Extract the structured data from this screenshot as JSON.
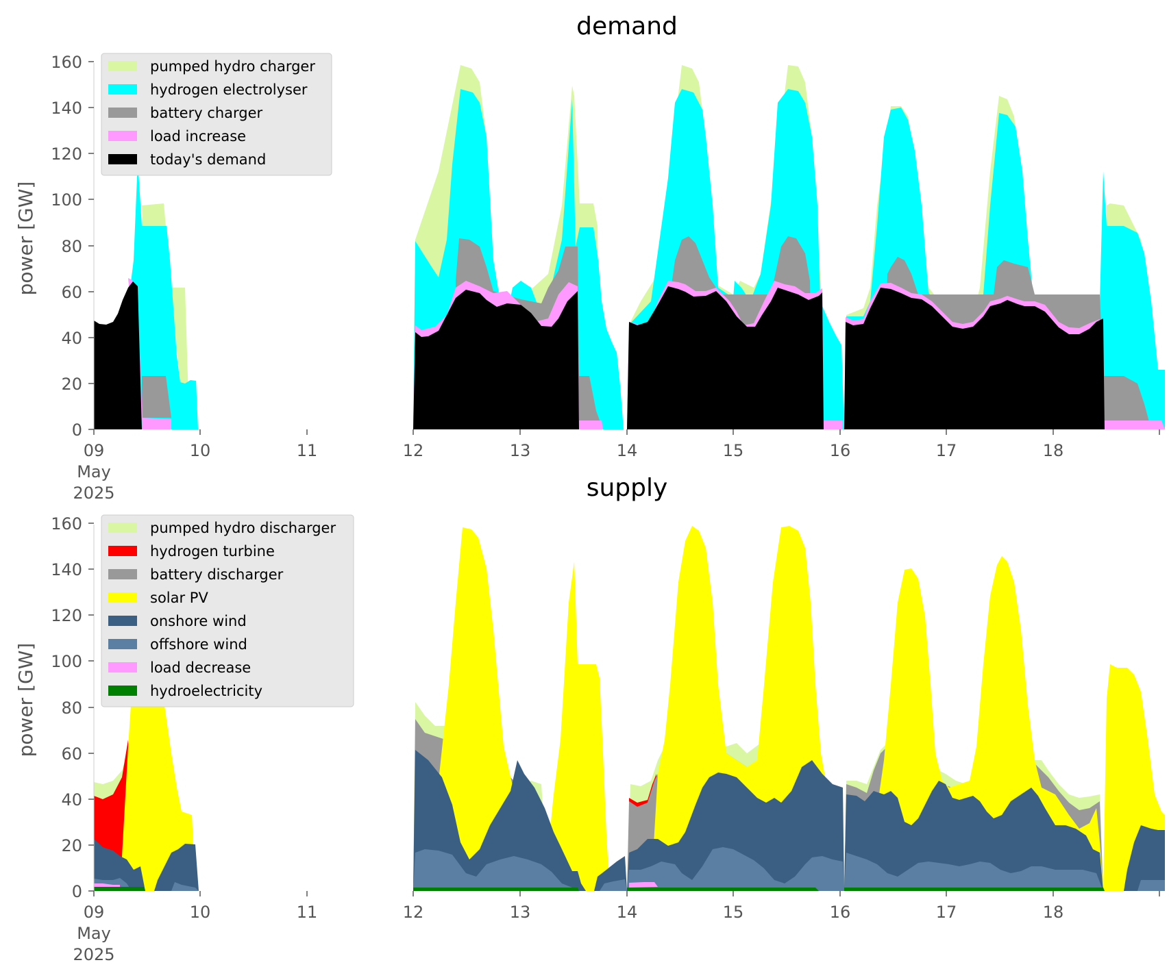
{
  "chart_data": [
    {
      "type": "area",
      "title": "demand",
      "ylabel": "power [GW]",
      "xlabel": "",
      "ylim": [
        0,
        162
      ],
      "yticks": [
        0,
        20,
        40,
        60,
        80,
        100,
        120,
        140,
        160
      ],
      "xlim": [
        "2025-05-09",
        "2025-05-19"
      ],
      "xticks": [
        "09",
        "10",
        "11",
        "12",
        "13",
        "14",
        "15",
        "16",
        "17",
        "18"
      ],
      "xtick_sublabels": [
        "May",
        "2025"
      ],
      "grid": false,
      "legend_position": "top-left",
      "legend": [
        "pumped hydro charger",
        "hydrogen electrolyser",
        "battery charger",
        "load increase",
        "today's demand"
      ],
      "series": [
        {
          "name": "today's demand",
          "color": "#000000",
          "segments": [
            {
              "x": [
                "2025-05-09T00:00",
                "2025-05-09T01:00",
                "2025-05-09T03:00",
                "2025-05-09T05:00",
                "2025-05-09T06:00",
                "2025-05-09T07:30",
                "2025-05-09T08:30",
                "2025-05-09T10:00",
                "2025-05-09T10:45"
              ],
              "y": [
                48,
                46,
                47,
                51,
                57,
                63,
                64,
                60,
                0
              ]
            },
            {
              "x": [
                "2025-05-12T00:00",
                "2025-05-12T00:45",
                "2025-05-12T02:00",
                "2025-05-12T03:30",
                "2025-05-12T05:00",
                "2025-05-12T06:30",
                "2025-05-12T08:00",
                "2025-05-12T10:00",
                "2025-05-12T12:00",
                "2025-05-12T14:00",
                "2025-05-12T16:00",
                "2025-05-12T18:00",
                "2025-05-12T20:00",
                "2025-05-12T21:30",
                "2025-05-12T23:00",
                "2025-05-13T00:30",
                "2025-05-13T02:00",
                "2025-05-13T03:30",
                "2025-05-13T05:00",
                "2025-05-13T06:30",
                "2025-05-13T08:00",
                "2025-05-13T09:30",
                "2025-05-13T10:30",
                "2025-05-13T11:30",
                "2025-05-13T12:30",
                "2025-05-13T13:15"
              ],
              "y": [
                0,
                43,
                42,
                43,
                51,
                58,
                62,
                60,
                57,
                57,
                60,
                59,
                56,
                51,
                46,
                45,
                46,
                52,
                60,
                62,
                61,
                60,
                0,
                0,
                0,
                0
              ]
            },
            {
              "x": [
                "2025-05-14T00:00",
                "2025-05-14T00:20",
                "2025-05-14T02:00",
                "2025-05-14T03:30",
                "2025-05-14T05:00",
                "2025-05-14T06:30",
                "2025-05-14T08:00",
                "2025-05-14T10:00",
                "2025-05-14T12:00",
                "2025-05-14T14:00",
                "2025-05-14T16:00",
                "2025-05-14T17:30",
                "2025-05-14T19:00",
                "2025-05-14T20:30",
                "2025-05-14T22:00",
                "2025-05-14T23:30",
                "2025-05-15T01:00",
                "2025-05-15T02:30",
                "2025-05-15T04:00",
                "2025-05-15T05:30",
                "2025-05-15T07:00",
                "2025-05-15T09:00",
                "2025-05-15T11:00",
                "2025-05-15T13:00",
                "2025-05-15T15:00",
                "2025-05-15T17:00",
                "2025-05-15T18:30",
                "2025-05-15T19:15"
              ],
              "y": [
                0,
                47,
                46,
                47,
                54,
                62,
                61,
                59,
                56,
                57,
                60,
                58,
                55,
                50,
                46,
                45,
                47,
                52,
                58,
                62,
                61,
                60,
                58,
                59,
                61,
                58,
                0,
                0
              ]
            },
            {
              "x": [
                "2025-05-16T00:00",
                "2025-05-16T00:20",
                "2025-05-16T02:00",
                "2025-05-16T03:30",
                "2025-05-16T05:00",
                "2025-05-16T06:30",
                "2025-05-16T08:00",
                "2025-05-16T10:00",
                "2025-05-16T12:00",
                "2025-05-16T14:00",
                "2025-05-16T16:00",
                "2025-05-16T17:30",
                "2025-05-16T19:00",
                "2025-05-16T20:30",
                "2025-05-16T22:00",
                "2025-05-16T23:30",
                "2025-05-17T01:00",
                "2025-05-17T02:30",
                "2025-05-17T04:00",
                "2025-05-17T05:30",
                "2025-05-17T07:00",
                "2025-05-17T09:00",
                "2025-05-17T11:00",
                "2025-05-17T13:00",
                "2025-05-17T15:00",
                "2025-05-17T17:00",
                "2025-05-17T18:30",
                "2025-05-17T20:00",
                "2025-05-17T21:30",
                "2025-05-17T23:00",
                "2025-05-18T00:30",
                "2025-05-18T02:00",
                "2025-05-18T03:30",
                "2025-05-18T05:00",
                "2025-05-18T06:30",
                "2025-05-18T08:00",
                "2025-05-18T09:30",
                "2025-05-18T11:00",
                "2025-05-18T11:45"
              ],
              "y": [
                0,
                47,
                46,
                47,
                53,
                61,
                60,
                58,
                57,
                58,
                58,
                55,
                51,
                46,
                43,
                42,
                43,
                47,
                50,
                52,
                50,
                49,
                48,
                50,
                47,
                43,
                40,
                38,
                37,
                38,
                41,
                46,
                48,
                0,
                0,
                0,
                0,
                0,
                0
              ]
            }
          ]
        },
        {
          "name": "load increase",
          "color": "#ff99ff",
          "approx_values": "2-5 GW thin band above today's demand"
        },
        {
          "name": "battery charger",
          "color": "#999999",
          "peaks": [
            {
              "x": "2025-05-12T12:00",
              "y": 84
            },
            {
              "x": "2025-05-13T12:30",
              "y": 79
            },
            {
              "x": "2025-05-14T12:00",
              "y": 84
            },
            {
              "x": "2025-05-15T12:00",
              "y": 84
            },
            {
              "x": "2025-05-16T12:00",
              "y": 76
            },
            {
              "x": "2025-05-17T12:00",
              "y": 76
            }
          ]
        },
        {
          "name": "hydrogen electrolyser",
          "color": "#00ffff",
          "peaks": [
            {
              "x": "2025-05-09T09:00",
              "y": 124
            },
            {
              "x": "2025-05-12T12:00",
              "y": 148
            },
            {
              "x": "2025-05-13T12:30",
              "y": 144
            },
            {
              "x": "2025-05-14T12:00",
              "y": 148
            },
            {
              "x": "2025-05-15T12:00",
              "y": 149
            },
            {
              "x": "2025-05-16T12:00",
              "y": 141
            },
            {
              "x": "2025-05-17T12:00",
              "y": 138
            },
            {
              "x": "2025-05-18T11:00",
              "y": 112
            }
          ]
        },
        {
          "name": "pumped hydro charger",
          "color": "#d9f7a3",
          "peaks": [
            {
              "x": "2025-05-12T12:00",
              "y": 158
            },
            {
              "x": "2025-05-13T12:30",
              "y": 152
            },
            {
              "x": "2025-05-14T12:00",
              "y": 159
            },
            {
              "x": "2025-05-15T12:00",
              "y": 159
            },
            {
              "x": "2025-05-17T12:00",
              "y": 147
            }
          ]
        }
      ]
    },
    {
      "type": "area",
      "title": "supply",
      "ylabel": "power [GW]",
      "xlabel": "",
      "ylim": [
        0,
        162
      ],
      "yticks": [
        0,
        20,
        40,
        60,
        80,
        100,
        120,
        140,
        160
      ],
      "xlim": [
        "2025-05-09",
        "2025-05-19"
      ],
      "xticks": [
        "09",
        "10",
        "11",
        "12",
        "13",
        "14",
        "15",
        "16",
        "17",
        "18"
      ],
      "xtick_sublabels": [
        "May",
        "2025"
      ],
      "grid": false,
      "legend_position": "top-left",
      "legend": [
        "pumped hydro discharger",
        "hydrogen turbine",
        "battery discharger",
        "solar PV",
        "onshore wind",
        "offshore wind",
        "load decrease",
        "hydroelectricity"
      ],
      "series": [
        {
          "name": "hydroelectricity",
          "color": "#008000",
          "approx_values": "about 1-2 GW throughout"
        },
        {
          "name": "load decrease",
          "color": "#ff99ff",
          "approx_values": "small, about 2-3 GW on 9 and 14 May"
        },
        {
          "name": "offshore wind",
          "color": "#5b7fa3",
          "approx_values": "about 2-20 GW"
        },
        {
          "name": "onshore wind",
          "color": "#3a5f82",
          "approx_values": "about 5-60 GW"
        },
        {
          "name": "solar PV",
          "color": "#ffff00",
          "peaks": [
            {
              "x": "2025-05-12T12:00",
              "y": 158
            },
            {
              "x": "2025-05-13T12:30",
              "y": 152
            },
            {
              "x": "2025-05-14T12:00",
              "y": 159
            },
            {
              "x": "2025-05-15T12:00",
              "y": 159
            },
            {
              "x": "2025-05-16T12:00",
              "y": 141
            },
            {
              "x": "2025-05-17T12:00",
              "y": 147
            },
            {
              "x": "2025-05-18T12:30",
              "y": 99
            }
          ]
        },
        {
          "name": "battery discharger",
          "color": "#999999",
          "approx_values": "about 5-25 GW on evenings and nights"
        },
        {
          "name": "hydrogen turbine",
          "color": "#ff0000",
          "approx_values": "up to about 45 GW on 9 May, about 3 GW on 14 May"
        },
        {
          "name": "pumped hydro discharger",
          "color": "#d9f7a3",
          "approx_values": "about 3-8 GW at the top"
        }
      ]
    }
  ]
}
